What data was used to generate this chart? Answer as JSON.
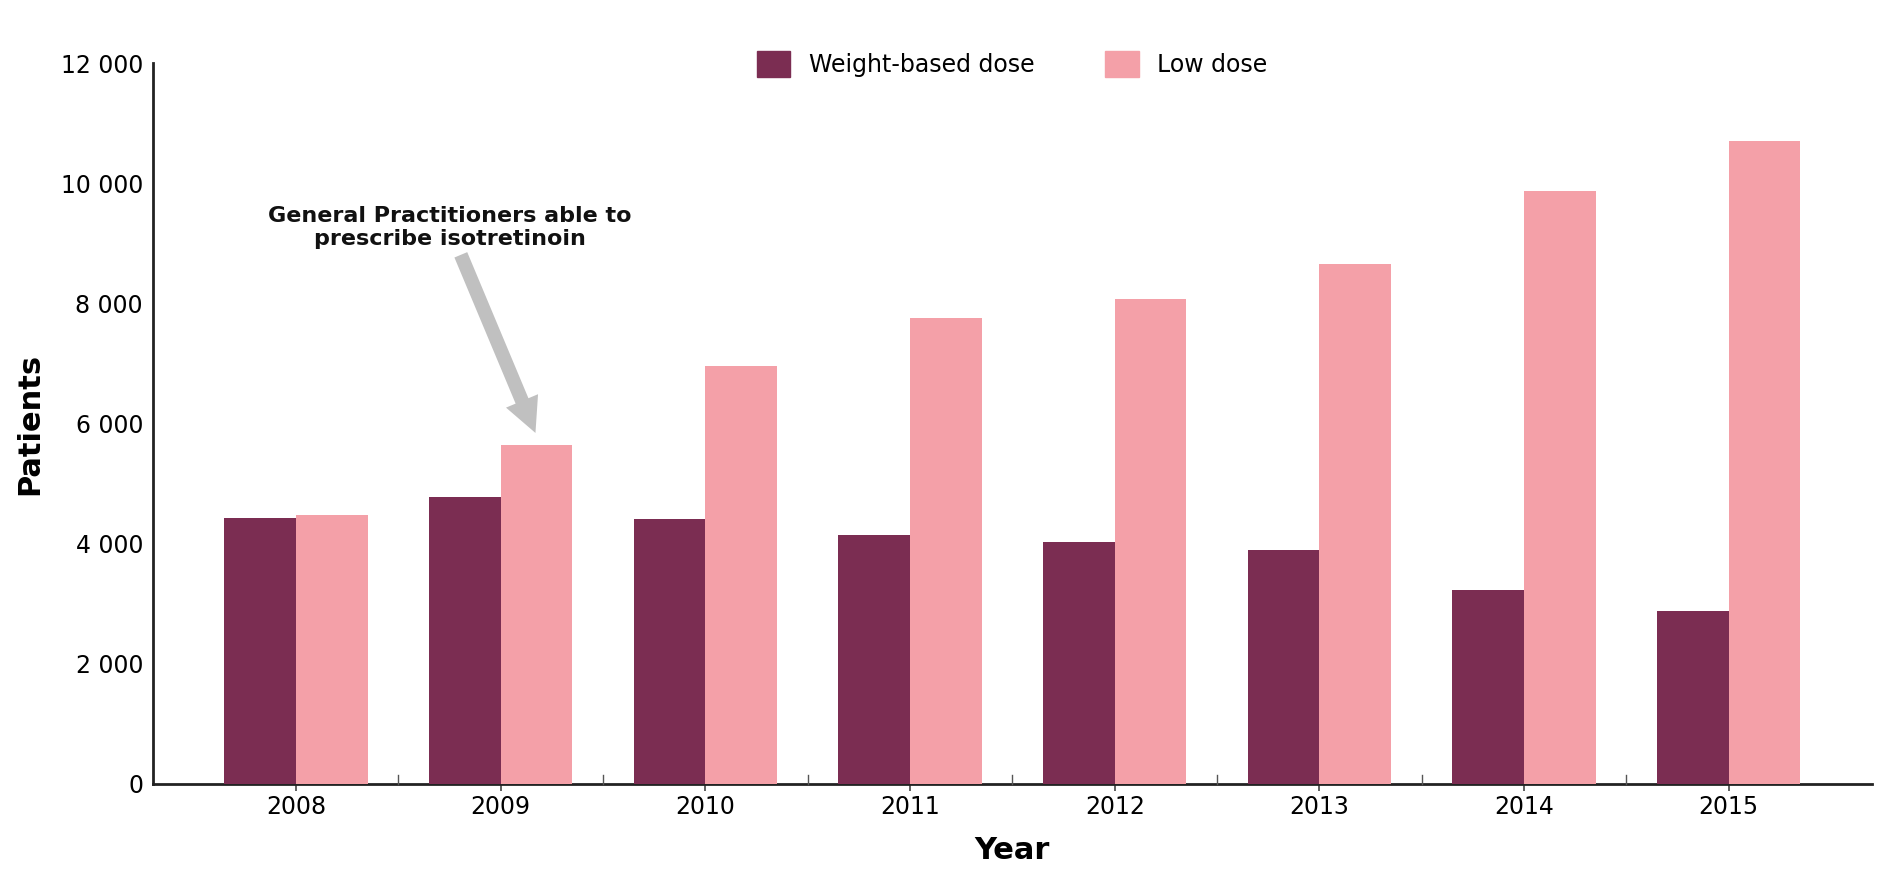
{
  "years": [
    2008,
    2009,
    2010,
    2011,
    2012,
    2013,
    2014,
    2015
  ],
  "weight_based": [
    4430,
    4780,
    4410,
    4150,
    4020,
    3900,
    3230,
    2880
  ],
  "low_dose": [
    4480,
    5650,
    6950,
    7750,
    8080,
    8650,
    9870,
    10700
  ],
  "weight_based_color": "#7B2D52",
  "low_dose_color": "#F4A0A8",
  "background_color": "#FFFFFF",
  "xlabel": "Year",
  "ylabel": "Patients",
  "ylim": [
    0,
    12000
  ],
  "yticks": [
    0,
    2000,
    4000,
    6000,
    8000,
    10000,
    12000
  ],
  "ytick_labels": [
    "0",
    "2 000",
    "4 000",
    "6 000",
    "8 000",
    "10 000",
    "12 000"
  ],
  "legend_weight_label": "Weight-based dose",
  "legend_low_label": "Low dose",
  "annotation_text": "General Practitioners able to\nprescribe isotretinoin",
  "bar_width": 0.35,
  "tick_fontsize": 17,
  "label_fontsize": 22,
  "legend_fontsize": 17,
  "annotation_fontsize": 16,
  "spine_color": "#222222",
  "tick_color": "#444444"
}
